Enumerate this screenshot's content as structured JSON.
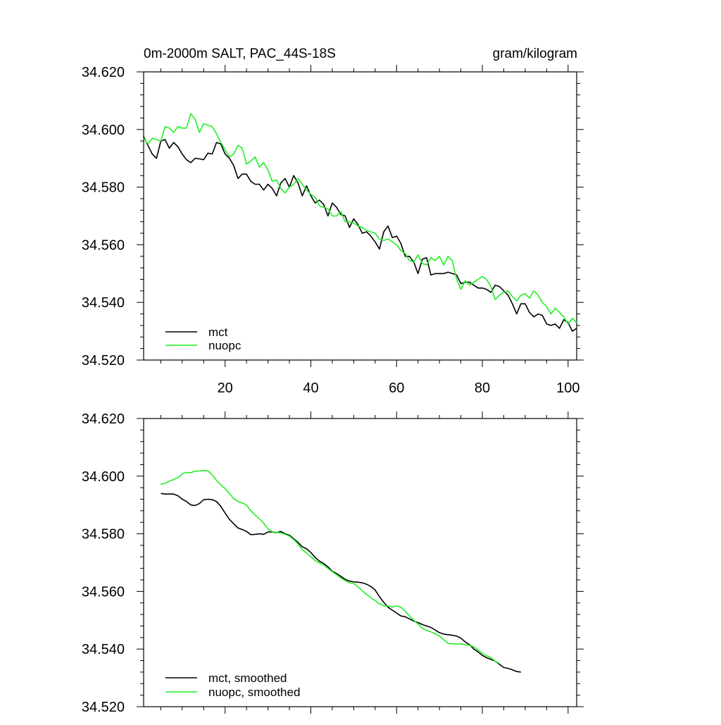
{
  "chart_data": [
    {
      "type": "line",
      "title_left": "0m-2000m SALT, PAC_44S-18S",
      "title_right": "gram/kilogram",
      "xlim": [
        1,
        102
      ],
      "ylim": [
        34.52,
        34.62
      ],
      "xticks": [
        20,
        40,
        60,
        80,
        100
      ],
      "xtick_labels": [
        "20",
        "40",
        "60",
        "80",
        "100"
      ],
      "yticks": [
        34.52,
        34.54,
        34.56,
        34.58,
        34.6,
        34.62
      ],
      "ytick_labels": [
        "34.520",
        "34.540",
        "34.560",
        "34.580",
        "34.600",
        "34.620"
      ],
      "series": [
        {
          "name": "mct",
          "color": "#000000",
          "x_start": 1,
          "values": [
            34.5975,
            34.5945,
            34.5915,
            34.59,
            34.596,
            34.5965,
            34.5935,
            34.5955,
            34.594,
            34.5915,
            34.5895,
            34.5885,
            34.59,
            34.5898,
            34.5895,
            34.5918,
            34.5915,
            34.5955,
            34.595,
            34.5915,
            34.59,
            34.5875,
            34.583,
            34.5845,
            34.5845,
            34.582,
            34.581,
            34.581,
            34.579,
            34.581,
            34.5795,
            34.577,
            34.5815,
            34.583,
            34.58,
            34.584,
            34.5815,
            34.577,
            34.5805,
            34.577,
            34.5745,
            34.5755,
            34.574,
            34.57,
            34.5745,
            34.573,
            34.5705,
            34.57,
            34.566,
            34.569,
            34.567,
            34.564,
            34.5645,
            34.563,
            34.561,
            34.5585,
            34.5645,
            34.5665,
            34.5625,
            34.563,
            34.5605,
            34.556,
            34.556,
            34.554,
            34.55,
            34.555,
            34.5555,
            34.5495,
            34.55,
            34.55,
            34.55,
            34.5505,
            34.55,
            34.5495,
            34.5465,
            34.547,
            34.547,
            34.546,
            34.545,
            34.545,
            34.5445,
            34.5435,
            34.546,
            34.5455,
            34.544,
            34.5425,
            34.5395,
            34.536,
            34.5395,
            34.5395,
            34.5365,
            34.535,
            34.536,
            34.5355,
            34.5325,
            34.532,
            34.5325,
            34.531,
            34.534,
            34.533,
            34.53,
            34.531
          ]
        },
        {
          "name": "nuopc",
          "color": "#22ee22",
          "x_start": 1,
          "values": [
            34.597,
            34.595,
            34.597,
            34.5965,
            34.596,
            34.601,
            34.6005,
            34.599,
            34.601,
            34.6005,
            34.6005,
            34.6055,
            34.6035,
            34.599,
            34.602,
            34.6015,
            34.601,
            34.5985,
            34.5955,
            34.593,
            34.5905,
            34.5915,
            34.5945,
            34.5935,
            34.588,
            34.589,
            34.5905,
            34.587,
            34.5885,
            34.586,
            34.582,
            34.5825,
            34.5795,
            34.578,
            34.58,
            34.581,
            34.583,
            34.581,
            34.579,
            34.5775,
            34.5765,
            34.5735,
            34.573,
            34.5725,
            34.57,
            34.57,
            34.5715,
            34.568,
            34.568,
            34.5675,
            34.5665,
            34.566,
            34.565,
            34.5645,
            34.564,
            34.562,
            34.5615,
            34.562,
            34.561,
            34.56,
            34.558,
            34.557,
            34.5545,
            34.554,
            34.5565,
            34.5535,
            34.553,
            34.5555,
            34.5545,
            34.556,
            34.553,
            34.556,
            34.5545,
            34.548,
            34.5445,
            34.5475,
            34.546,
            34.547,
            34.548,
            34.549,
            34.548,
            34.5455,
            34.541,
            34.5425,
            34.5435,
            34.544,
            34.542,
            34.5405,
            34.5425,
            34.543,
            34.5415,
            34.544,
            34.5425,
            34.54,
            34.5385,
            34.536,
            34.538,
            34.5365,
            34.535,
            34.5325,
            34.5345,
            34.533
          ]
        }
      ],
      "legend": {
        "placement": "bottom-left",
        "entries": [
          "mct",
          "nuopc"
        ]
      }
    },
    {
      "type": "line",
      "xlim": [
        1,
        102
      ],
      "ylim": [
        34.52,
        34.62
      ],
      "xticks": [
        20,
        40,
        60,
        80,
        100
      ],
      "yticks": [
        34.52,
        34.54,
        34.56,
        34.58,
        34.6,
        34.62
      ],
      "ytick_labels": [
        "34.520",
        "34.540",
        "34.560",
        "34.580",
        "34.600",
        "34.620"
      ],
      "series": [
        {
          "name": "mct, smoothed",
          "color": "#000000",
          "x_start": 5,
          "values": [
            34.594,
            34.5938,
            34.5938,
            34.5938,
            34.5932,
            34.592,
            34.5912,
            34.59,
            34.5898,
            34.5905,
            34.5918,
            34.592,
            34.5918,
            34.5912,
            34.5895,
            34.5872,
            34.585,
            34.5835,
            34.582,
            34.5815,
            34.5808,
            34.5797,
            34.5798,
            34.58,
            34.5798,
            34.5806,
            34.5806,
            34.5804,
            34.5808,
            34.58,
            34.5795,
            34.5783,
            34.577,
            34.5755,
            34.5748,
            34.5735,
            34.5718,
            34.5705,
            34.5697,
            34.5685,
            34.567,
            34.5662,
            34.5652,
            34.5642,
            34.5636,
            34.5633,
            34.5632,
            34.563,
            34.5625,
            34.5617,
            34.5605,
            34.5582,
            34.5562,
            34.5545,
            34.5535,
            34.5525,
            34.5515,
            34.5512,
            34.5505,
            34.5497,
            34.5492,
            34.5485,
            34.548,
            34.5475,
            34.5466,
            34.5457,
            34.5452,
            34.545,
            34.5448,
            34.5445,
            34.5438,
            34.5425,
            34.5415,
            34.54,
            34.539,
            34.5378,
            34.537,
            34.5364,
            34.5358,
            34.5347,
            34.5336,
            34.5333,
            34.5328,
            34.5322,
            34.532
          ]
        },
        {
          "name": "nuopc, smoothed",
          "color": "#22ee22",
          "x_start": 5,
          "values": [
            34.5972,
            34.5975,
            34.5983,
            34.5988,
            34.5995,
            34.6008,
            34.6013,
            34.6012,
            34.6017,
            34.6018,
            34.602,
            34.6018,
            34.6005,
            34.5985,
            34.597,
            34.5957,
            34.594,
            34.5922,
            34.5912,
            34.5907,
            34.59,
            34.588,
            34.5865,
            34.5852,
            34.5837,
            34.5817,
            34.5807,
            34.5805,
            34.5803,
            34.5798,
            34.5792,
            34.578,
            34.5765,
            34.5745,
            34.5733,
            34.572,
            34.5707,
            34.5698,
            34.5692,
            34.568,
            34.5668,
            34.5658,
            34.5647,
            34.5638,
            34.563,
            34.5627,
            34.5616,
            34.5602,
            34.559,
            34.5578,
            34.5568,
            34.5557,
            34.555,
            34.555,
            34.5545,
            34.555,
            34.5545,
            34.5532,
            34.5515,
            34.55,
            34.5487,
            34.5472,
            34.5465,
            34.546,
            34.5453,
            34.5445,
            34.5432,
            34.542,
            34.5418,
            34.5417,
            34.5418,
            34.5415,
            34.5413,
            34.5408,
            34.5397,
            34.5385,
            34.5377,
            34.537,
            34.5358,
            34.535
          ]
        }
      ],
      "legend": {
        "placement": "bottom-left",
        "entries": [
          "mct, smoothed",
          "nuopc, smoothed"
        ]
      }
    }
  ]
}
